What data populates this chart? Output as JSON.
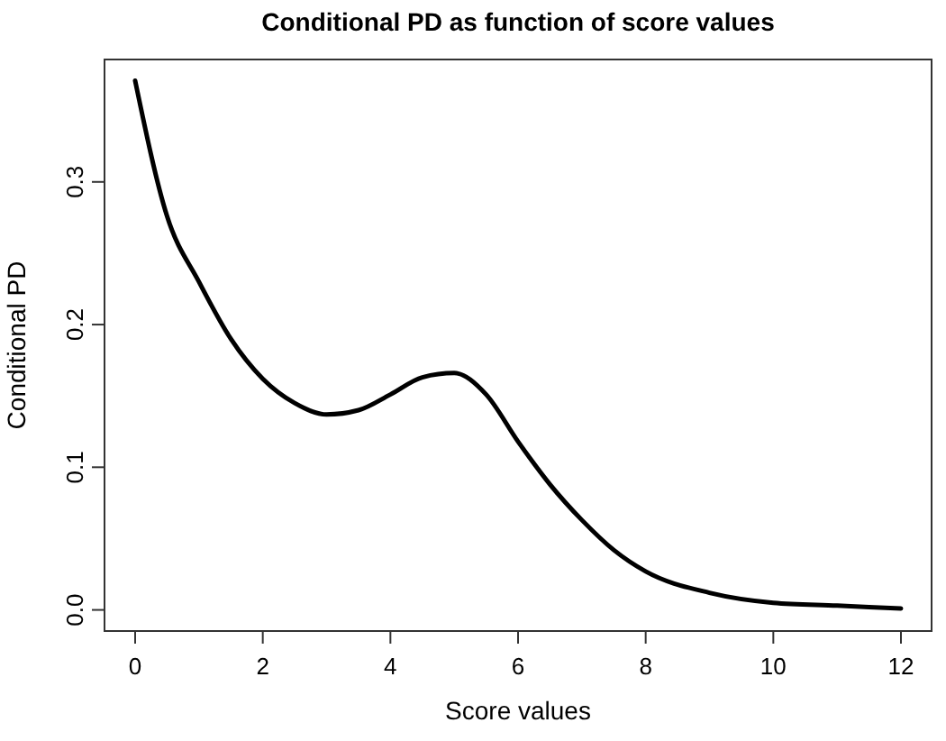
{
  "chart_data": {
    "type": "line",
    "title": "Conditional PD as function of score values",
    "xlabel": "Score values",
    "ylabel": "Conditional PD",
    "x": [
      0,
      0.5,
      1,
      1.5,
      2,
      2.5,
      3,
      3.5,
      4,
      4.5,
      5,
      5.5,
      6,
      6.5,
      7,
      7.5,
      8,
      9,
      10,
      11,
      12
    ],
    "series": [
      {
        "color": "#000000",
        "values": [
          0.371,
          0.276,
          0.23,
          0.19,
          0.162,
          0.145,
          0.137,
          0.14,
          0.151,
          0.163,
          0.166,
          0.151,
          0.118,
          0.088,
          0.063,
          0.042,
          0.027,
          0.012,
          0.005,
          0.003,
          0.001
        ]
      }
    ],
    "xlim": [
      -0.48,
      12.48
    ],
    "ylim": [
      -0.0148,
      0.3858
    ],
    "xticks": [
      0,
      2,
      4,
      6,
      8,
      10,
      12
    ],
    "yticks": [
      {
        "value": 0,
        "label": "0.0"
      },
      {
        "value": 0.1,
        "label": "0.1"
      },
      {
        "value": 0.2,
        "label": "0.2"
      },
      {
        "value": 0.3,
        "label": "0.3"
      }
    ],
    "line_style": "solid"
  }
}
